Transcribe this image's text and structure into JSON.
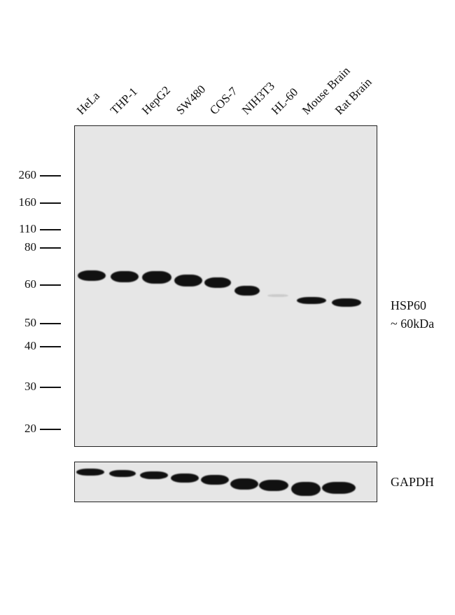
{
  "lanes": [
    "HeLa",
    "THP-1",
    "HepG2",
    "SW480",
    "COS-7",
    "NIH3T3",
    "HL-60",
    "Mouse Brain",
    "Rat Brain"
  ],
  "markers": [
    "260",
    "160",
    "110",
    "80",
    "60",
    "50",
    "40",
    "30",
    "20"
  ],
  "target": {
    "name": "HSP60",
    "size": "~ 60kDa"
  },
  "loading_control": {
    "name": "GAPDH"
  }
}
